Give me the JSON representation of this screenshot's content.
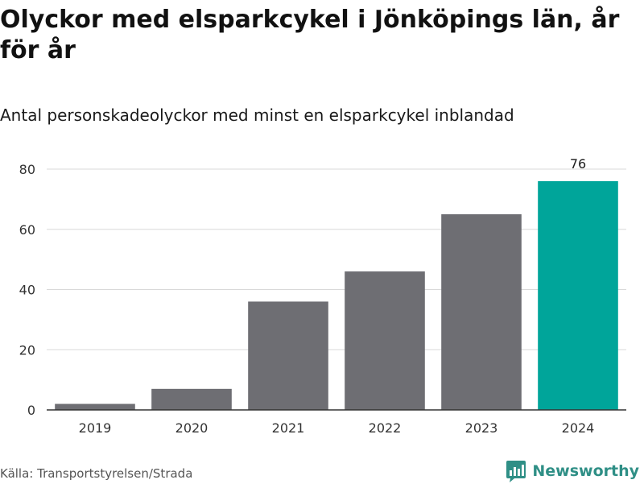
{
  "title": "Olyckor med elsparkcykel i Jönköpings län, år för år",
  "subtitle": "Antal personskadeolyckor med minst en elsparkcykel inblandad",
  "source": "Källa: Transportstyrelsen/Strada",
  "brand": {
    "name": "Newsworthy",
    "icon": "bar-chart-logo-icon",
    "color": "#2f8f86"
  },
  "colors": {
    "bar": "#6e6e73",
    "highlight": "#00a59a",
    "grid": "#d9d9d9",
    "axis": "#333333"
  },
  "chart_data": {
    "type": "bar",
    "categories": [
      "2019",
      "2020",
      "2021",
      "2022",
      "2023",
      "2024"
    ],
    "values": [
      2,
      7,
      36,
      46,
      65,
      76
    ],
    "ylim": [
      0,
      80
    ],
    "yticks": [
      0,
      20,
      40,
      60,
      80
    ],
    "highlight_index": 5,
    "data_labels": [
      {
        "index": 5,
        "text": "76"
      }
    ],
    "grid": true,
    "legend": "none"
  }
}
